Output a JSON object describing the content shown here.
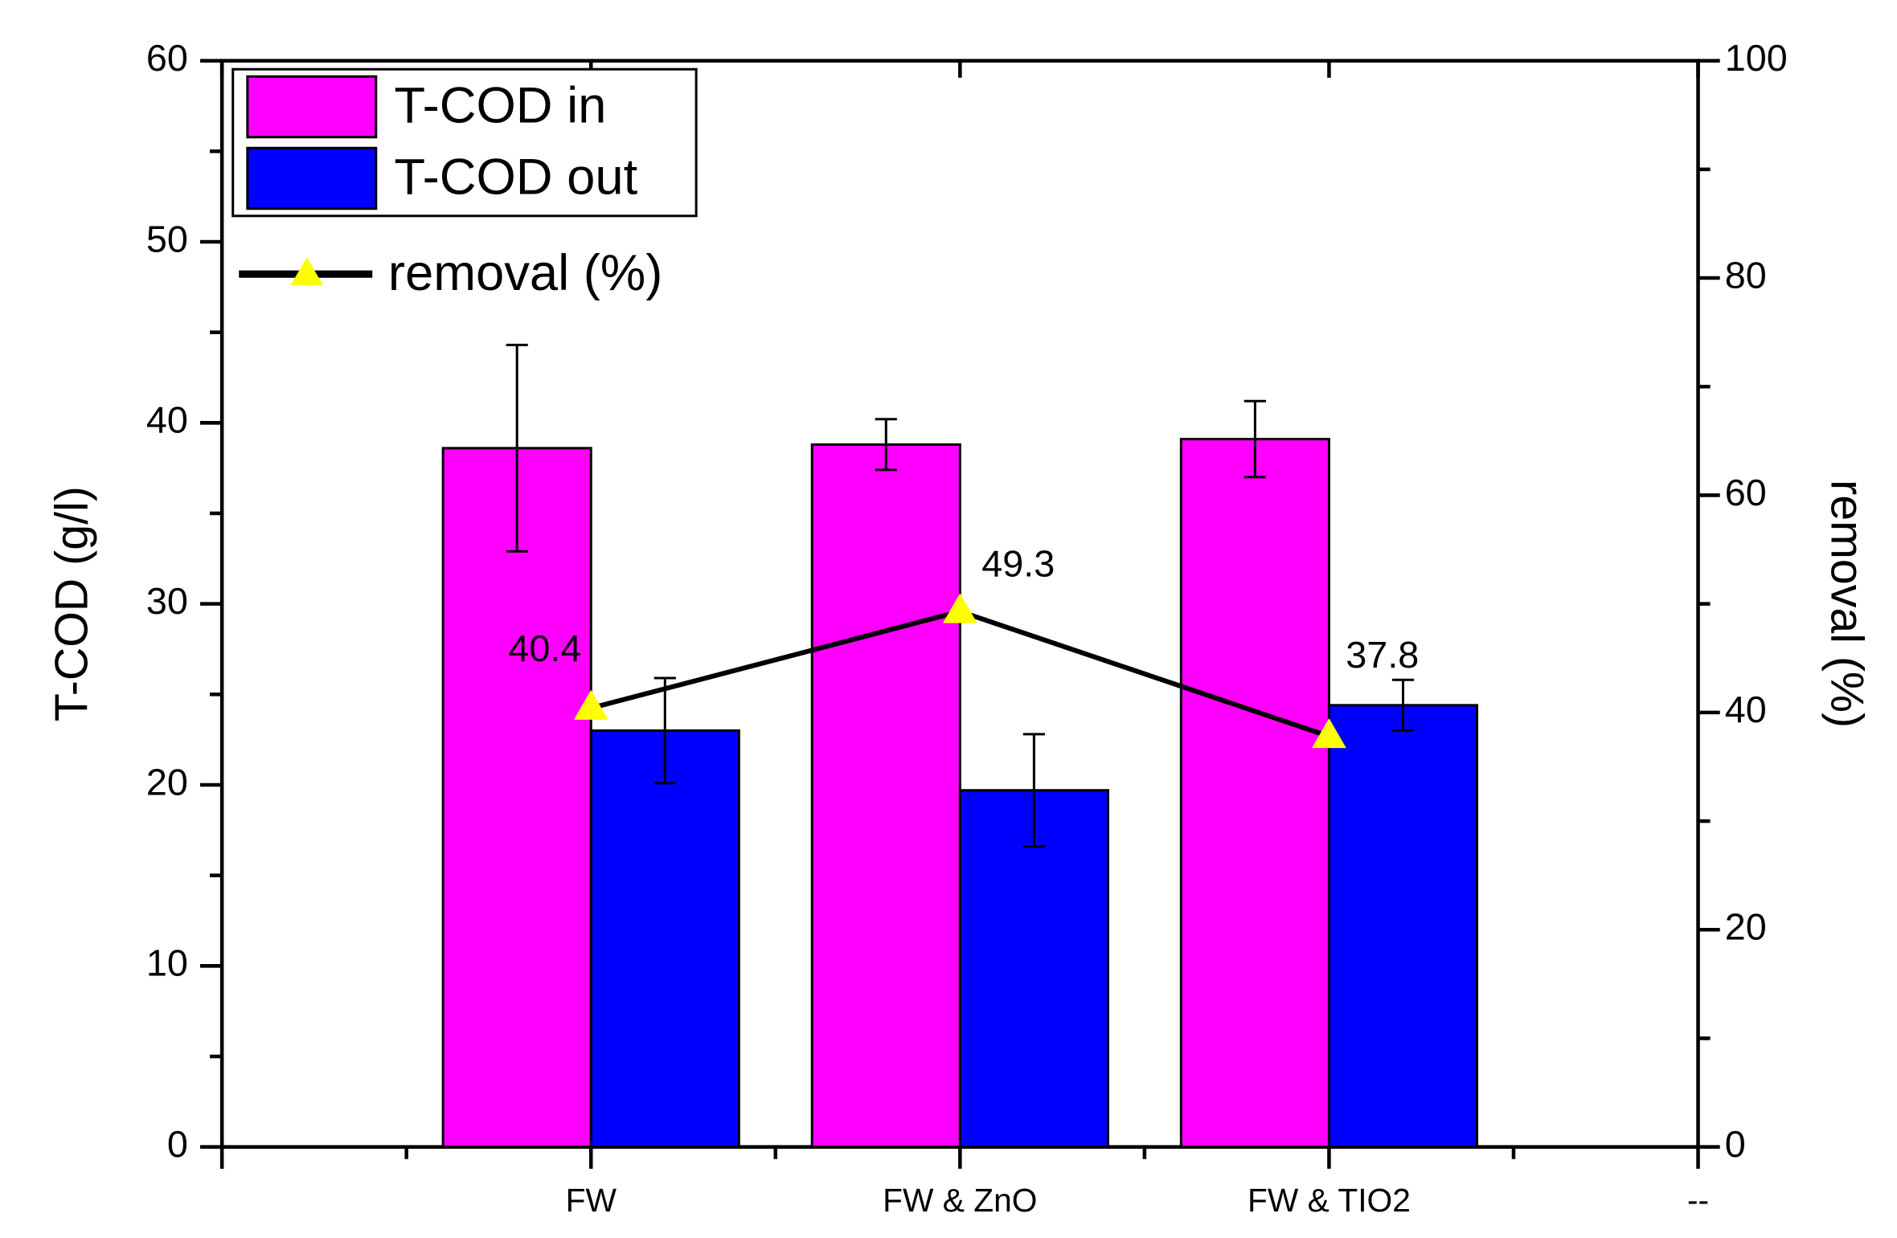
{
  "chart_data": {
    "type": "bar",
    "y_label": "T-COD (g/l)",
    "y2_label": "removal (%)",
    "categories": [
      null,
      "FW",
      "FW & ZnO",
      "FW & TIO2",
      "--"
    ],
    "series": [
      {
        "name": "T-COD in",
        "type": "bar",
        "color": "#ff00ff",
        "values": [
          null,
          38.6,
          38.8,
          39.1,
          null
        ],
        "errors": [
          null,
          5.7,
          1.4,
          2.1,
          null
        ]
      },
      {
        "name": "T-COD out",
        "type": "bar",
        "color": "#0000ff",
        "values": [
          null,
          23.0,
          19.7,
          24.4,
          null
        ],
        "errors": [
          null,
          2.9,
          3.1,
          1.4,
          null
        ]
      },
      {
        "name": "removal (%)",
        "type": "line",
        "axis": "y2",
        "color": "#000000",
        "marker_color": "#ffff00",
        "values": [
          null,
          40.4,
          49.3,
          37.8,
          null
        ]
      }
    ],
    "ylim": [
      0,
      60
    ],
    "yticks": [
      0,
      10,
      20,
      30,
      40,
      50,
      60
    ],
    "y2lim": [
      0,
      100
    ],
    "y2ticks": [
      0,
      20,
      40,
      60,
      80,
      100
    ],
    "legend": "upper left",
    "grid": false
  }
}
